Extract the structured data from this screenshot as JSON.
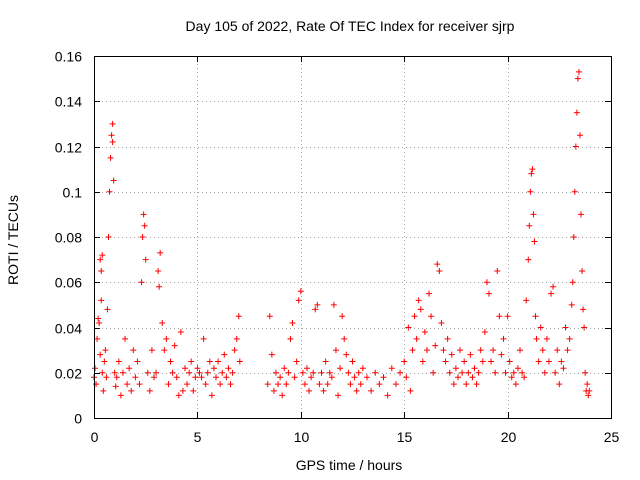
{
  "chart_data": {
    "type": "scatter",
    "title": "Day 105 of 2022, Rate Of TEC Index for receiver sjrp",
    "xlabel": "GPS time / hours",
    "ylabel": "ROTI / TECUs",
    "xlim": [
      0,
      25
    ],
    "ylim": [
      0,
      0.16
    ],
    "x_ticks": [
      0,
      5,
      10,
      15,
      20,
      25
    ],
    "x_tick_labels": [
      "0",
      "5",
      "10",
      "15",
      "20",
      "25"
    ],
    "y_ticks": [
      0,
      0.02,
      0.04,
      0.06,
      0.08,
      0.1,
      0.12,
      0.14,
      0.16
    ],
    "y_tick_labels": [
      "0",
      "0.02",
      "0.04",
      "0.06",
      "0.08",
      "0.1",
      "0.12",
      "0.14",
      "0.16"
    ],
    "grid": true,
    "marker": "+",
    "color": "#ff0000",
    "series": [
      {
        "name": "ROTI",
        "points": [
          [
            0.0,
            0.018
          ],
          [
            0.05,
            0.022
          ],
          [
            0.1,
            0.015
          ],
          [
            0.15,
            0.035
          ],
          [
            0.2,
            0.044
          ],
          [
            0.25,
            0.042
          ],
          [
            0.3,
            0.028
          ],
          [
            0.3,
            0.07
          ],
          [
            0.35,
            0.065
          ],
          [
            0.35,
            0.052
          ],
          [
            0.4,
            0.072
          ],
          [
            0.4,
            0.02
          ],
          [
            0.45,
            0.012
          ],
          [
            0.5,
            0.025
          ],
          [
            0.55,
            0.03
          ],
          [
            0.6,
            0.018
          ],
          [
            0.65,
            0.048
          ],
          [
            0.7,
            0.08
          ],
          [
            0.75,
            0.1
          ],
          [
            0.8,
            0.115
          ],
          [
            0.85,
            0.125
          ],
          [
            0.9,
            0.13
          ],
          [
            0.9,
            0.122
          ],
          [
            0.95,
            0.105
          ],
          [
            1.0,
            0.02
          ],
          [
            1.05,
            0.014
          ],
          [
            1.1,
            0.018
          ],
          [
            1.2,
            0.025
          ],
          [
            1.3,
            0.01
          ],
          [
            1.4,
            0.02
          ],
          [
            1.5,
            0.035
          ],
          [
            1.6,
            0.015
          ],
          [
            1.7,
            0.022
          ],
          [
            1.8,
            0.012
          ],
          [
            1.9,
            0.03
          ],
          [
            2.0,
            0.018
          ],
          [
            2.1,
            0.025
          ],
          [
            2.2,
            0.015
          ],
          [
            2.3,
            0.06
          ],
          [
            2.35,
            0.08
          ],
          [
            2.4,
            0.09
          ],
          [
            2.45,
            0.085
          ],
          [
            2.5,
            0.07
          ],
          [
            2.6,
            0.02
          ],
          [
            2.7,
            0.012
          ],
          [
            2.8,
            0.03
          ],
          [
            2.9,
            0.018
          ],
          [
            3.0,
            0.02
          ],
          [
            3.1,
            0.065
          ],
          [
            3.15,
            0.058
          ],
          [
            3.2,
            0.073
          ],
          [
            3.3,
            0.042
          ],
          [
            3.4,
            0.03
          ],
          [
            3.5,
            0.035
          ],
          [
            3.6,
            0.015
          ],
          [
            3.7,
            0.025
          ],
          [
            3.8,
            0.02
          ],
          [
            3.9,
            0.032
          ],
          [
            4.0,
            0.018
          ],
          [
            4.1,
            0.01
          ],
          [
            4.2,
            0.038
          ],
          [
            4.3,
            0.012
          ],
          [
            4.4,
            0.022
          ],
          [
            4.5,
            0.015
          ],
          [
            4.6,
            0.02
          ],
          [
            4.7,
            0.025
          ],
          [
            4.8,
            0.012
          ],
          [
            4.9,
            0.018
          ],
          [
            5.0,
            0.022
          ],
          [
            5.1,
            0.02
          ],
          [
            5.2,
            0.018
          ],
          [
            5.3,
            0.035
          ],
          [
            5.4,
            0.015
          ],
          [
            5.5,
            0.02
          ],
          [
            5.6,
            0.025
          ],
          [
            5.7,
            0.01
          ],
          [
            5.8,
            0.022
          ],
          [
            5.9,
            0.018
          ],
          [
            6.0,
            0.025
          ],
          [
            6.1,
            0.015
          ],
          [
            6.2,
            0.02
          ],
          [
            6.3,
            0.028
          ],
          [
            6.4,
            0.018
          ],
          [
            6.5,
            0.022
          ],
          [
            6.6,
            0.015
          ],
          [
            6.7,
            0.02
          ],
          [
            6.8,
            0.03
          ],
          [
            6.9,
            0.035
          ],
          [
            7.0,
            0.045
          ],
          [
            7.05,
            0.025
          ],
          [
            8.4,
            0.015
          ],
          [
            8.5,
            0.045
          ],
          [
            8.6,
            0.028
          ],
          [
            8.7,
            0.012
          ],
          [
            8.8,
            0.02
          ],
          [
            8.9,
            0.015
          ],
          [
            9.0,
            0.018
          ],
          [
            9.1,
            0.01
          ],
          [
            9.2,
            0.022
          ],
          [
            9.3,
            0.015
          ],
          [
            9.4,
            0.02
          ],
          [
            9.5,
            0.035
          ],
          [
            9.6,
            0.042
          ],
          [
            9.7,
            0.018
          ],
          [
            9.8,
            0.025
          ],
          [
            9.9,
            0.052
          ],
          [
            10.0,
            0.056
          ],
          [
            10.1,
            0.02
          ],
          [
            10.2,
            0.015
          ],
          [
            10.3,
            0.022
          ],
          [
            10.4,
            0.012
          ],
          [
            10.5,
            0.018
          ],
          [
            10.6,
            0.02
          ],
          [
            10.7,
            0.048
          ],
          [
            10.8,
            0.05
          ],
          [
            10.9,
            0.015
          ],
          [
            11.0,
            0.02
          ],
          [
            11.1,
            0.012
          ],
          [
            11.2,
            0.025
          ],
          [
            11.3,
            0.015
          ],
          [
            11.4,
            0.02
          ],
          [
            11.5,
            0.018
          ],
          [
            11.6,
            0.05
          ],
          [
            11.7,
            0.03
          ],
          [
            11.8,
            0.01
          ],
          [
            11.9,
            0.022
          ],
          [
            12.0,
            0.045
          ],
          [
            12.1,
            0.035
          ],
          [
            12.2,
            0.028
          ],
          [
            12.3,
            0.02
          ],
          [
            12.4,
            0.015
          ],
          [
            12.5,
            0.025
          ],
          [
            12.6,
            0.018
          ],
          [
            12.7,
            0.012
          ],
          [
            12.8,
            0.02
          ],
          [
            12.9,
            0.015
          ],
          [
            13.0,
            0.022
          ],
          [
            13.2,
            0.018
          ],
          [
            13.4,
            0.012
          ],
          [
            13.6,
            0.02
          ],
          [
            13.8,
            0.015
          ],
          [
            14.0,
            0.018
          ],
          [
            14.2,
            0.01
          ],
          [
            14.4,
            0.022
          ],
          [
            14.6,
            0.015
          ],
          [
            14.8,
            0.02
          ],
          [
            15.0,
            0.025
          ],
          [
            15.1,
            0.018
          ],
          [
            15.2,
            0.04
          ],
          [
            15.3,
            0.012
          ],
          [
            15.4,
            0.03
          ],
          [
            15.5,
            0.045
          ],
          [
            15.6,
            0.035
          ],
          [
            15.7,
            0.052
          ],
          [
            15.8,
            0.048
          ],
          [
            15.9,
            0.025
          ],
          [
            16.0,
            0.038
          ],
          [
            16.1,
            0.03
          ],
          [
            16.2,
            0.055
          ],
          [
            16.3,
            0.045
          ],
          [
            16.4,
            0.02
          ],
          [
            16.5,
            0.032
          ],
          [
            16.6,
            0.068
          ],
          [
            16.7,
            0.065
          ],
          [
            16.8,
            0.042
          ],
          [
            16.9,
            0.03
          ],
          [
            17.0,
            0.025
          ],
          [
            17.1,
            0.035
          ],
          [
            17.2,
            0.02
          ],
          [
            17.3,
            0.028
          ],
          [
            17.4,
            0.015
          ],
          [
            17.5,
            0.022
          ],
          [
            17.6,
            0.018
          ],
          [
            17.7,
            0.03
          ],
          [
            17.8,
            0.02
          ],
          [
            17.9,
            0.025
          ],
          [
            18.0,
            0.015
          ],
          [
            18.1,
            0.02
          ],
          [
            18.2,
            0.028
          ],
          [
            18.3,
            0.018
          ],
          [
            18.4,
            0.022
          ],
          [
            18.5,
            0.015
          ],
          [
            18.6,
            0.02
          ],
          [
            18.7,
            0.03
          ],
          [
            18.8,
            0.025
          ],
          [
            18.9,
            0.038
          ],
          [
            19.0,
            0.06
          ],
          [
            19.1,
            0.055
          ],
          [
            19.2,
            0.025
          ],
          [
            19.3,
            0.03
          ],
          [
            19.4,
            0.02
          ],
          [
            19.5,
            0.065
          ],
          [
            19.6,
            0.045
          ],
          [
            19.7,
            0.028
          ],
          [
            19.8,
            0.035
          ],
          [
            19.9,
            0.02
          ],
          [
            20.0,
            0.045
          ],
          [
            20.1,
            0.025
          ],
          [
            20.2,
            0.018
          ],
          [
            20.3,
            0.02
          ],
          [
            20.4,
            0.015
          ],
          [
            20.5,
            0.022
          ],
          [
            20.6,
            0.03
          ],
          [
            20.7,
            0.02
          ],
          [
            20.8,
            0.018
          ],
          [
            20.9,
            0.052
          ],
          [
            21.0,
            0.07
          ],
          [
            21.05,
            0.085
          ],
          [
            21.1,
            0.1
          ],
          [
            21.15,
            0.108
          ],
          [
            21.2,
            0.11
          ],
          [
            21.25,
            0.09
          ],
          [
            21.3,
            0.078
          ],
          [
            21.35,
            0.045
          ],
          [
            21.4,
            0.035
          ],
          [
            21.5,
            0.025
          ],
          [
            21.6,
            0.04
          ],
          [
            21.7,
            0.03
          ],
          [
            21.8,
            0.02
          ],
          [
            21.9,
            0.035
          ],
          [
            22.0,
            0.025
          ],
          [
            22.1,
            0.055
          ],
          [
            22.2,
            0.058
          ],
          [
            22.3,
            0.02
          ],
          [
            22.4,
            0.03
          ],
          [
            22.5,
            0.015
          ],
          [
            22.6,
            0.025
          ],
          [
            22.7,
            0.022
          ],
          [
            22.8,
            0.04
          ],
          [
            22.9,
            0.03
          ],
          [
            23.0,
            0.035
          ],
          [
            23.1,
            0.05
          ],
          [
            23.15,
            0.06
          ],
          [
            23.2,
            0.08
          ],
          [
            23.25,
            0.1
          ],
          [
            23.3,
            0.12
          ],
          [
            23.35,
            0.135
          ],
          [
            23.4,
            0.15
          ],
          [
            23.45,
            0.153
          ],
          [
            23.5,
            0.125
          ],
          [
            23.55,
            0.09
          ],
          [
            23.6,
            0.065
          ],
          [
            23.65,
            0.048
          ],
          [
            23.7,
            0.04
          ],
          [
            23.75,
            0.02
          ],
          [
            23.8,
            0.012
          ],
          [
            23.85,
            0.015
          ],
          [
            23.9,
            0.01
          ],
          [
            23.95,
            0.012
          ]
        ]
      }
    ]
  }
}
